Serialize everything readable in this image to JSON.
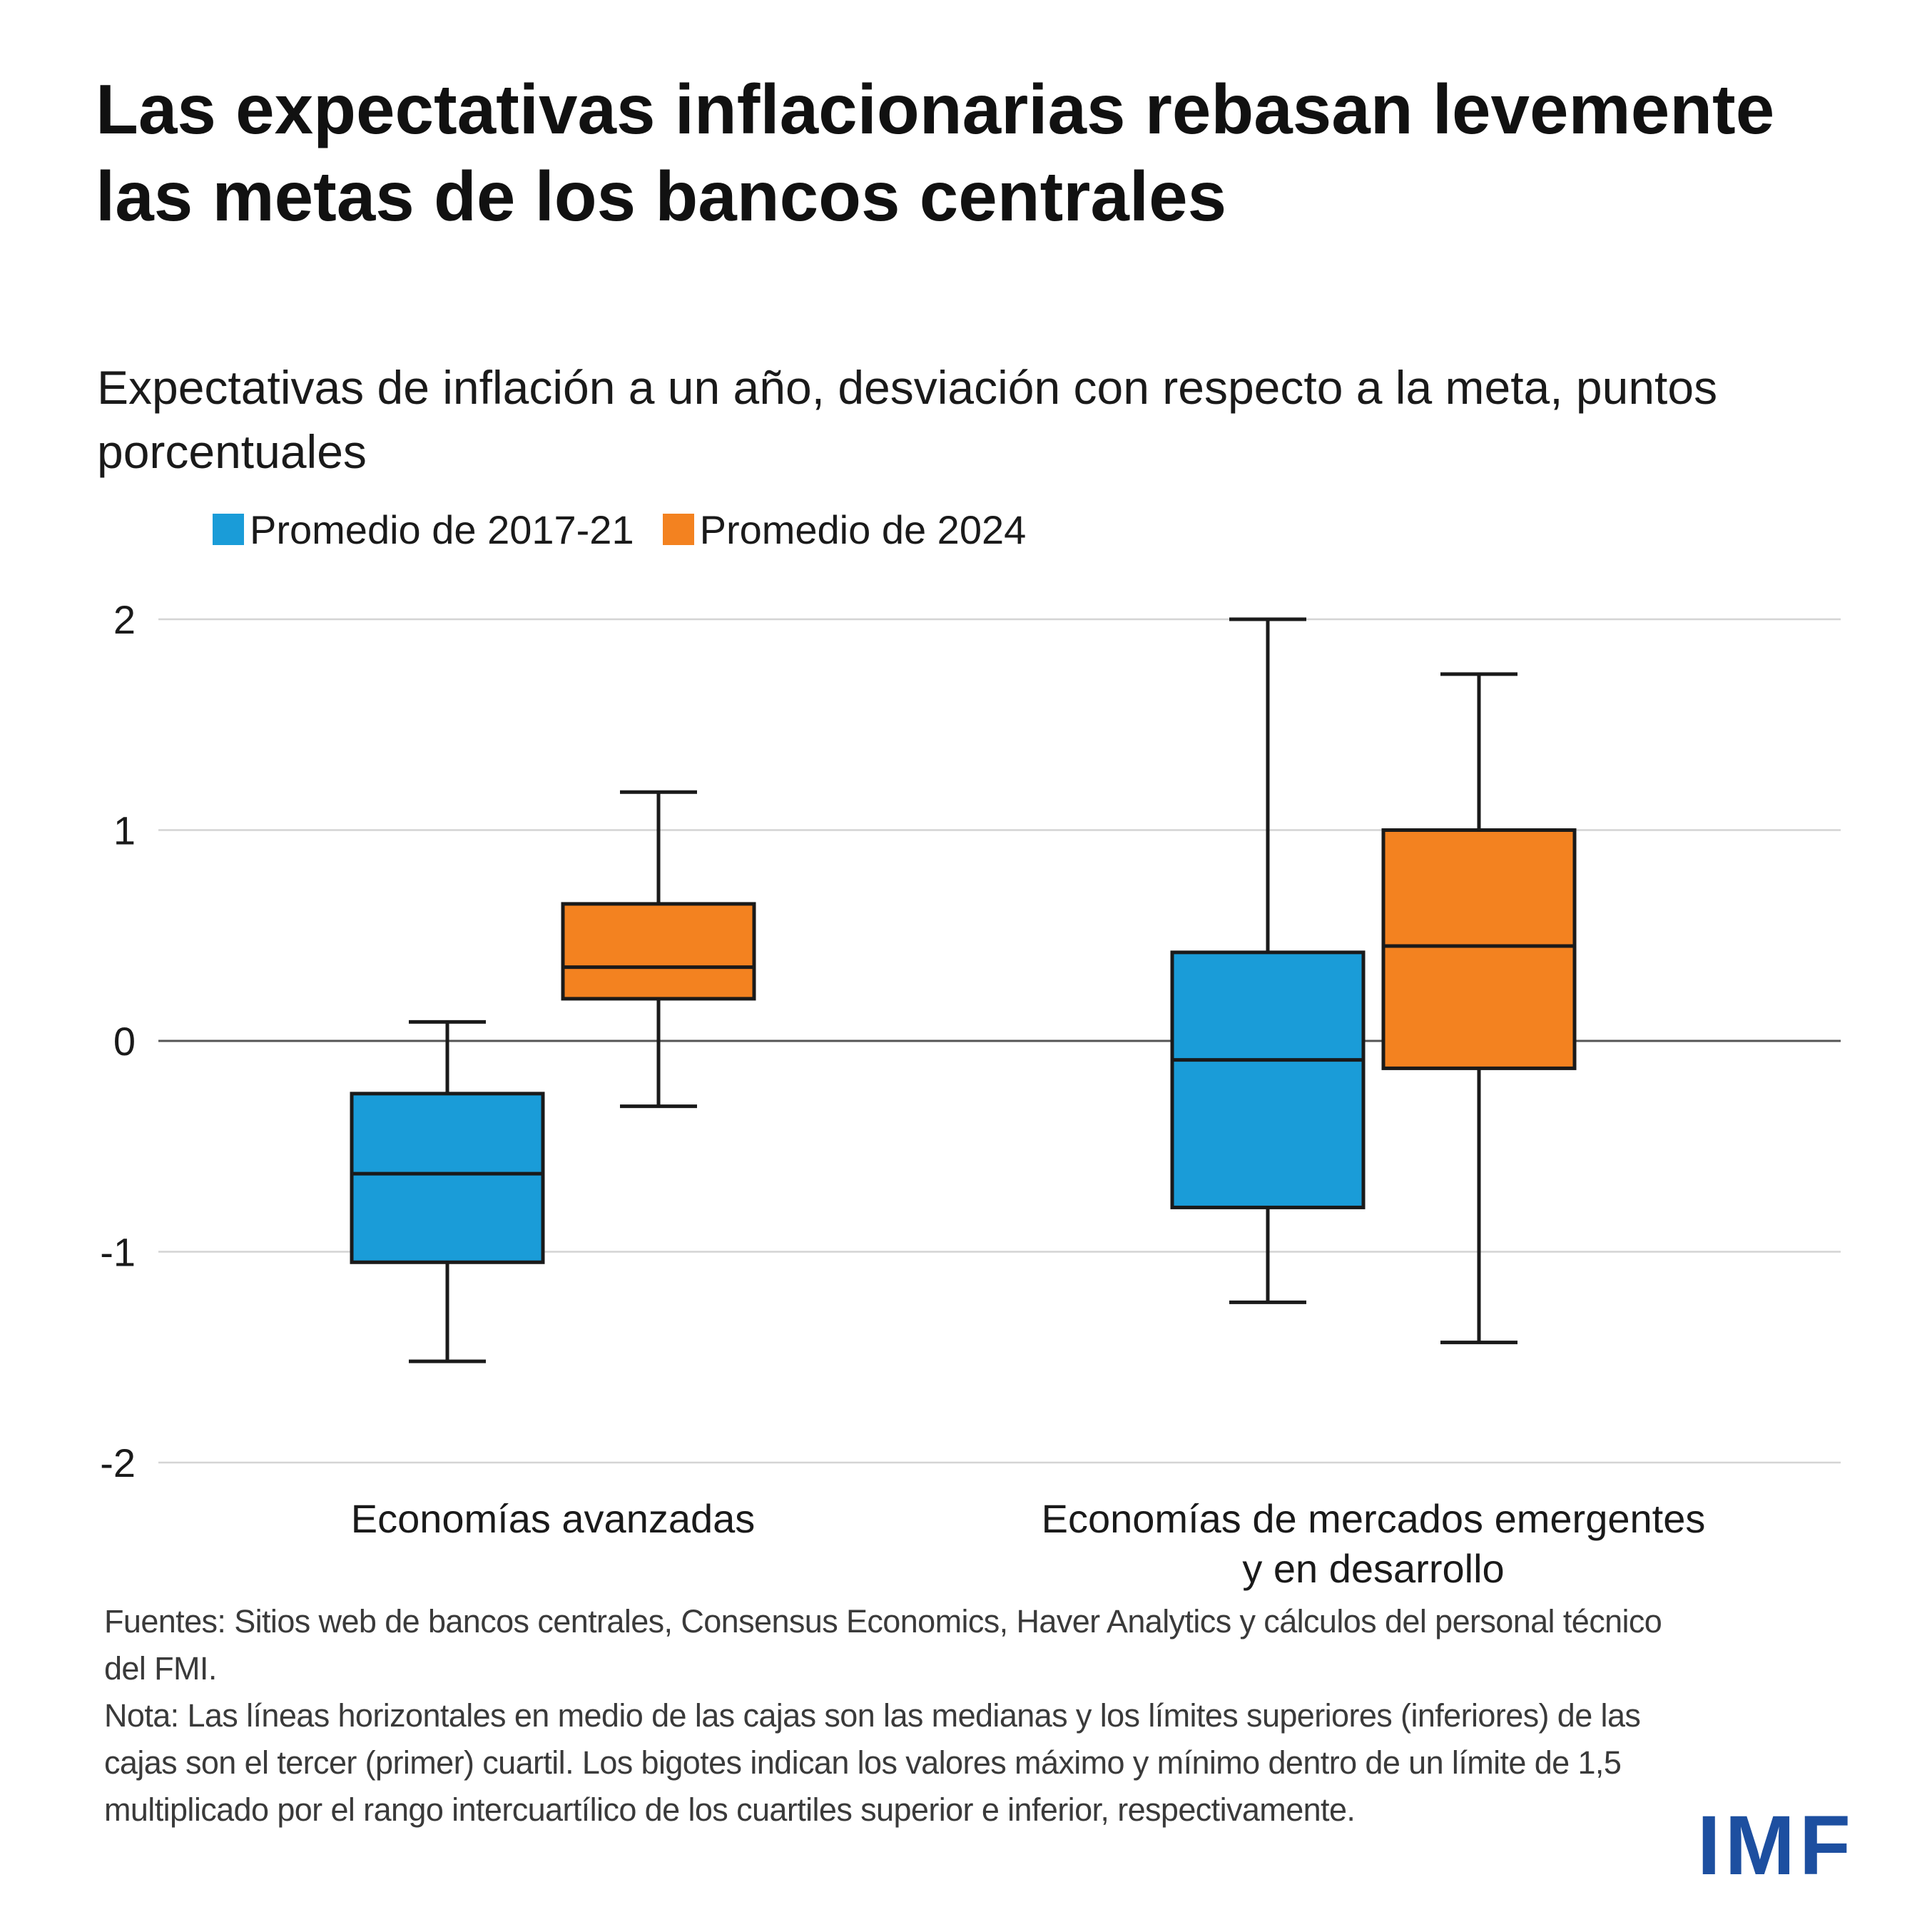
{
  "title": "Las expectativas inflacionarias rebasan levemente las metas de los bancos centrales",
  "chart_data": {
    "type": "boxplot",
    "title": "Las expectativas inflacionarias rebasan levemente las metas de los bancos centrales",
    "subtitle": "Expectativas de inflación a un año, desviación con respecto a la meta, puntos porcentuales",
    "xlabel": "",
    "ylabel": "",
    "ylim": [
      -2,
      2
    ],
    "yticks": [
      2,
      1,
      0,
      -1,
      -2
    ],
    "ytick_labels": [
      "2",
      "1",
      "0",
      "-1",
      "-2"
    ],
    "grid": true,
    "legend_position": "top-left",
    "categories": [
      [
        "Economías avanzadas"
      ],
      [
        "Economías de mercados emergentes",
        "y en desarrollo"
      ]
    ],
    "series": [
      {
        "name": "Promedio de 2017-21",
        "color": "#1a9cd8",
        "boxes": [
          {
            "min": -1.52,
            "q1": -1.05,
            "median": -0.63,
            "q3": -0.25,
            "max": 0.09
          },
          {
            "min": -1.24,
            "q1": -0.79,
            "median": -0.09,
            "q3": 0.42,
            "max": 2.0
          }
        ]
      },
      {
        "name": "Promedio de 2024",
        "color": "#f38220",
        "boxes": [
          {
            "min": -0.31,
            "q1": 0.2,
            "median": 0.35,
            "q3": 0.65,
            "max": 1.18
          },
          {
            "min": -1.43,
            "q1": -0.13,
            "median": 0.45,
            "q3": 1.0,
            "max": 1.74
          }
        ]
      }
    ]
  },
  "notes": {
    "sources": "Fuentes: Sitios web de bancos centrales, Consensus Economics, Haver Analytics y cálculos del personal técnico del FMI.",
    "note": "Nota: Las líneas horizontales en medio de las cajas son las medianas y los límites superiores (inferiores) de las cajas son el tercer (primer) cuartil. Los bigotes indican los valores máximo y mínimo dentro de un límite de 1,5 multiplicado por el rango intercuartílico de los cuartiles superior e inferior, respectivamente."
  },
  "logo": "IMF"
}
